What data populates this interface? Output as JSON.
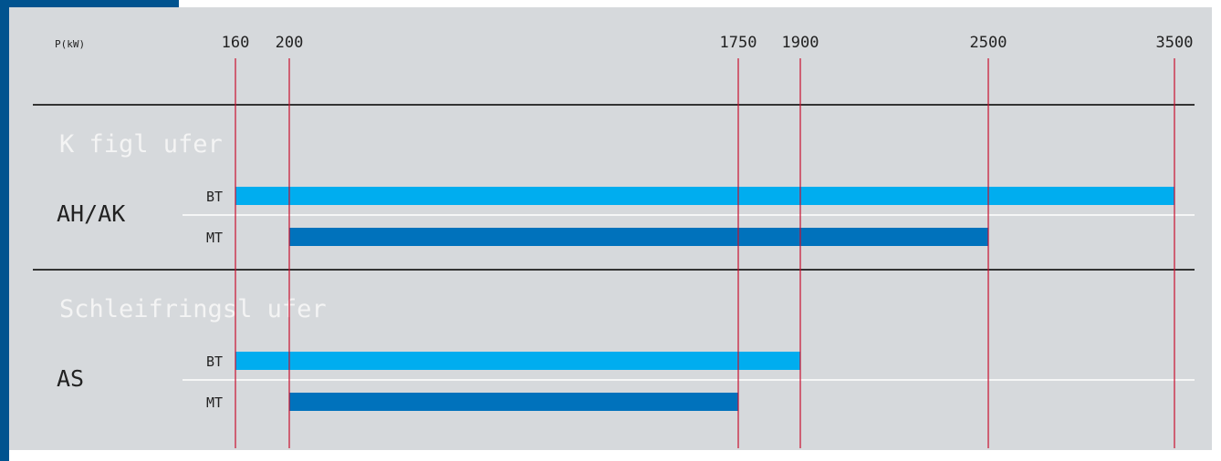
{
  "colors": {
    "panel_bg": "#d6d9dc",
    "frame_blue": "#00538f",
    "bt_bar": "#00adef",
    "mt_bar": "#0072bc",
    "grid_line": "#c8102e",
    "divider": "#333333",
    "row_separator": "#ffffff",
    "section_title": "#f4f4f4",
    "text": "#222222"
  },
  "chart_data": {
    "type": "bar",
    "orientation": "horizontal-range",
    "axis_label": "P(kW)",
    "ticks": [
      160,
      200,
      1750,
      1900,
      2500,
      3500
    ],
    "sections": [
      {
        "title": "K figl ufer",
        "group": "AH/AK",
        "rows": [
          {
            "label": "BT",
            "from": 160,
            "to": 3500
          },
          {
            "label": "MT",
            "from": 200,
            "to": 2500
          }
        ]
      },
      {
        "title": "Schleifringsl ufer",
        "group": "AS",
        "rows": [
          {
            "label": "BT",
            "from": 160,
            "to": 1900
          },
          {
            "label": "MT",
            "from": 200,
            "to": 1750
          }
        ]
      }
    ]
  }
}
